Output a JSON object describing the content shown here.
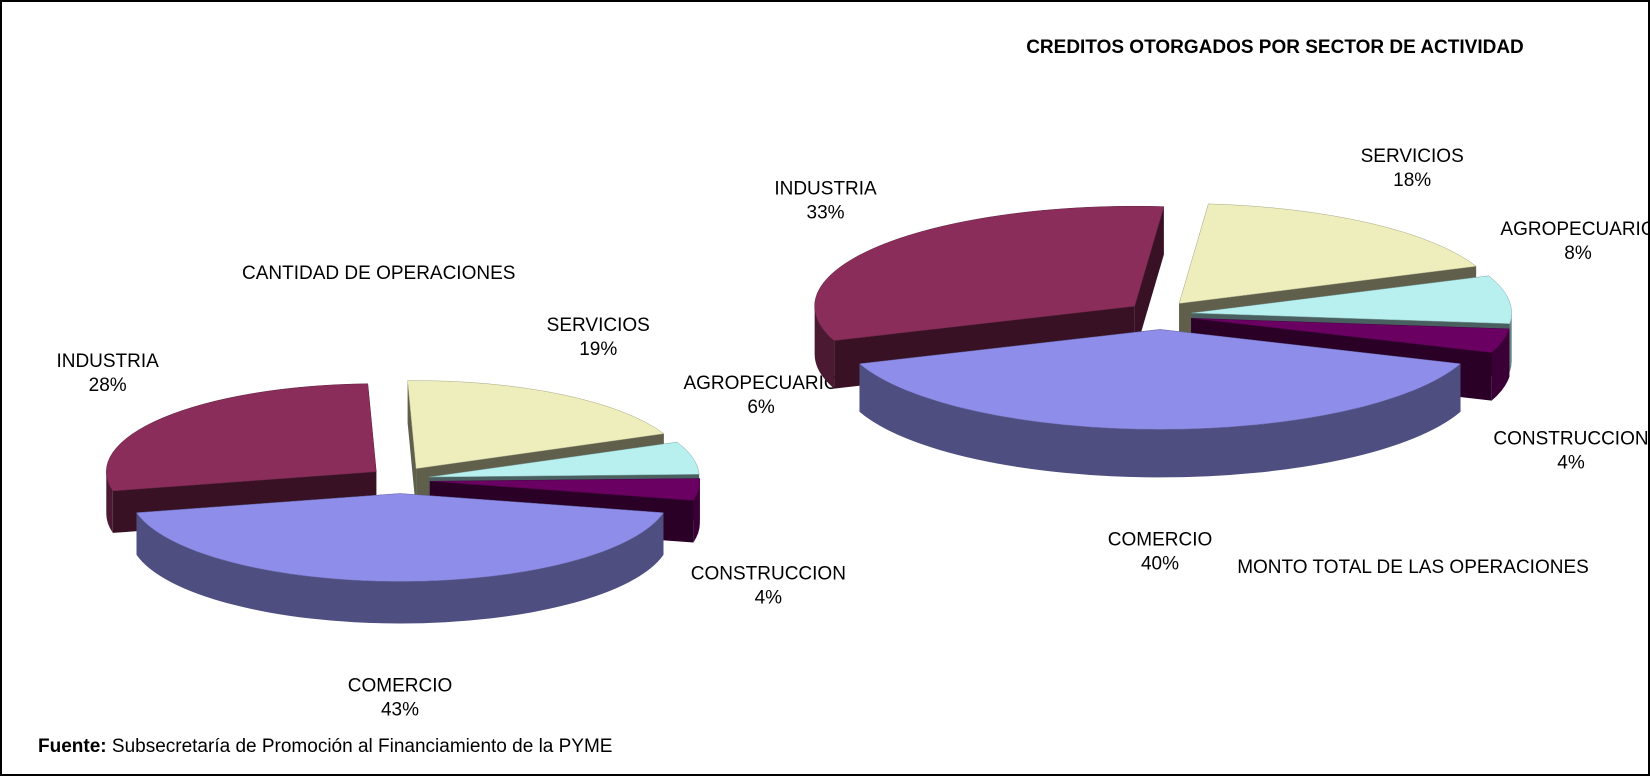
{
  "title": "CREDITOS OTORGADOS POR SECTOR DE ACTIVIDAD",
  "source": {
    "label": "Fuente:",
    "text": "Subsecretaría de Promoción al Financiamiento de la PYME"
  },
  "chart_data": [
    {
      "type": "pie",
      "title": "CANTIDAD DE OPERACIONES",
      "categories": [
        "COMERCIO",
        "INDUSTRIA",
        "SERVICIOS",
        "AGROPECUARIO",
        "CONSTRUCCION"
      ],
      "values": [
        43,
        28,
        19,
        6,
        4
      ],
      "value_labels": [
        "43%",
        "28%",
        "19%",
        "6%",
        "4%"
      ],
      "colors": [
        "#8e8eea",
        "#8b2d5a",
        "#eeeebd",
        "#b8f0f0",
        "#6a0062"
      ]
    },
    {
      "type": "pie",
      "title": "MONTO TOTAL DE LAS OPERACIONES",
      "categories": [
        "COMERCIO",
        "INDUSTRIA",
        "SERVICIOS",
        "AGROPECUARIO",
        "CONSTRUCCION"
      ],
      "values": [
        40,
        33,
        18,
        8,
        4
      ],
      "value_labels": [
        "40%",
        "33%",
        "18%",
        "8%",
        "4%"
      ],
      "colors": [
        "#8e8eea",
        "#8b2d5a",
        "#eeeebd",
        "#b8f0f0",
        "#6a0062"
      ]
    }
  ]
}
